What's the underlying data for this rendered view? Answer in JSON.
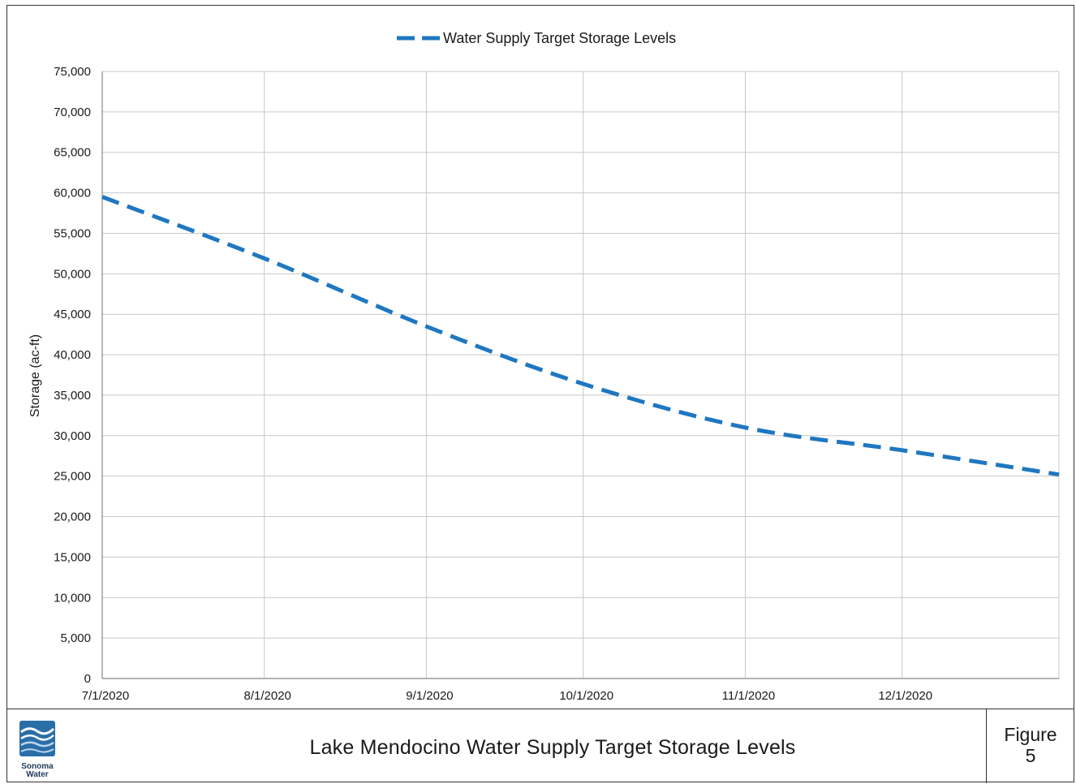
{
  "chart_data": {
    "type": "line",
    "title": "",
    "xlabel": "",
    "ylabel": "Storage (ac-ft)",
    "ylim": [
      0,
      75000
    ],
    "yticks": [
      0,
      5000,
      10000,
      15000,
      20000,
      25000,
      30000,
      35000,
      40000,
      45000,
      50000,
      55000,
      60000,
      65000,
      70000,
      75000
    ],
    "ytick_labels": [
      "0",
      "5,000",
      "10,000",
      "15,000",
      "20,000",
      "25,000",
      "30,000",
      "35,000",
      "40,000",
      "45,000",
      "50,000",
      "55,000",
      "60,000",
      "65,000",
      "70,000",
      "75,000"
    ],
    "xlim": [
      "7/1/2020",
      "12/31/2020"
    ],
    "xticks": [
      "7/1/2020",
      "8/1/2020",
      "9/1/2020",
      "10/1/2020",
      "11/1/2020",
      "12/1/2020"
    ],
    "grid": true,
    "legend_position": "top-center",
    "series": [
      {
        "name": "Water Supply Target Storage Levels",
        "color": "#1f77c0",
        "line_style": "dashed",
        "x": [
          "7/1/2020",
          "8/1/2020",
          "9/1/2020",
          "10/1/2020",
          "11/1/2020",
          "12/1/2020",
          "12/31/2020"
        ],
        "y": [
          59500,
          51900,
          43500,
          36400,
          31000,
          28200,
          25200
        ]
      }
    ]
  },
  "footer": {
    "title": "Lake Mendocino Water Supply Target Storage Levels",
    "figure_label": "Figure",
    "figure_number": "5",
    "logo_text_line1": "Sonoma",
    "logo_text_line2": "Water"
  },
  "colors": {
    "series": "#1f77c0",
    "grid": "#c8c8c8",
    "axis": "#888888",
    "logo": "#2a6ea8"
  }
}
